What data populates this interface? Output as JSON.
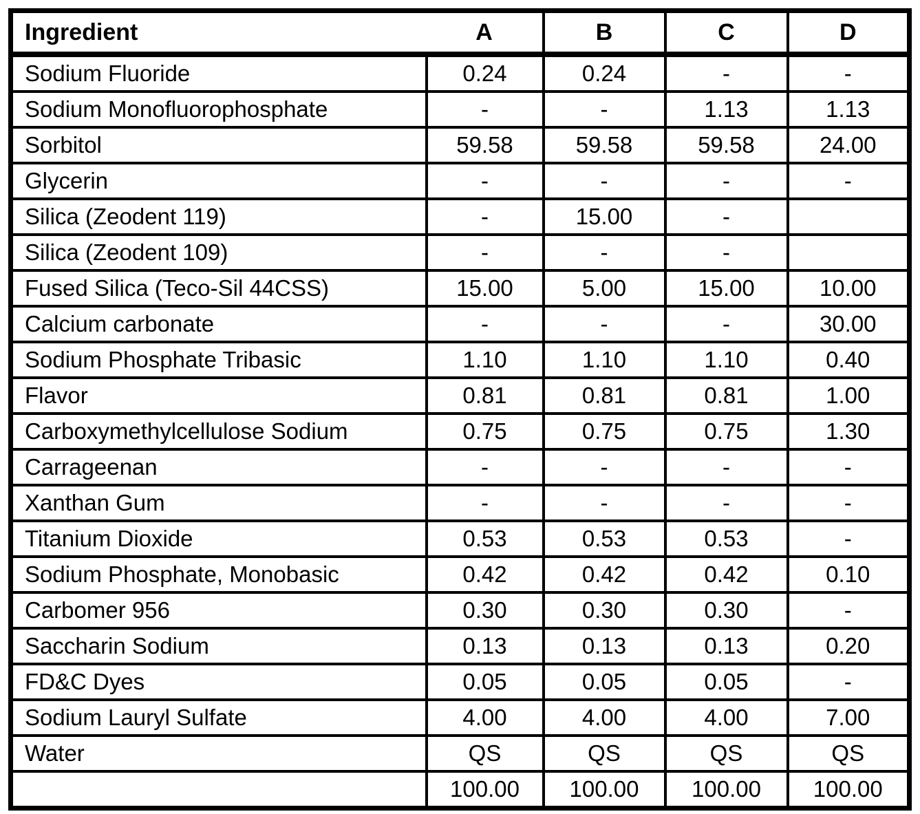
{
  "colors": {
    "background": "#ffffff",
    "border": "#000000",
    "text": "#000000"
  },
  "table": {
    "columns": [
      "Ingredient",
      "A",
      "B",
      "C",
      "D"
    ],
    "rows": [
      {
        "ingredient": "Sodium Fluoride",
        "values": [
          "0.24",
          "0.24",
          "-",
          "-"
        ]
      },
      {
        "ingredient": "Sodium Monofluorophosphate",
        "values": [
          "-",
          "-",
          "1.13",
          "1.13"
        ]
      },
      {
        "ingredient": "Sorbitol",
        "values": [
          "59.58",
          "59.58",
          "59.58",
          "24.00"
        ]
      },
      {
        "ingredient": "Glycerin",
        "values": [
          "-",
          "-",
          "-",
          "-"
        ]
      },
      {
        "ingredient": "Silica (Zeodent 119)",
        "values": [
          "-",
          "15.00",
          "-",
          ""
        ]
      },
      {
        "ingredient": "Silica (Zeodent 109)",
        "values": [
          "-",
          "-",
          "-",
          ""
        ]
      },
      {
        "ingredient": "Fused Silica (Teco-Sil 44CSS)",
        "values": [
          "15.00",
          "5.00",
          "15.00",
          "10.00"
        ]
      },
      {
        "ingredient": "Calcium carbonate",
        "values": [
          "-",
          "-",
          "-",
          "30.00"
        ]
      },
      {
        "ingredient": "Sodium Phosphate Tribasic",
        "values": [
          "1.10",
          "1.10",
          "1.10",
          "0.40"
        ]
      },
      {
        "ingredient": "Flavor",
        "values": [
          "0.81",
          "0.81",
          "0.81",
          "1.00"
        ]
      },
      {
        "ingredient": "Carboxymethylcellulose Sodium",
        "values": [
          "0.75",
          "0.75",
          "0.75",
          "1.30"
        ]
      },
      {
        "ingredient": "Carrageenan",
        "values": [
          "-",
          "-",
          "-",
          "-"
        ]
      },
      {
        "ingredient": "Xanthan Gum",
        "values": [
          "-",
          "-",
          "-",
          "-"
        ]
      },
      {
        "ingredient": "Titanium Dioxide",
        "values": [
          "0.53",
          "0.53",
          "0.53",
          "-"
        ]
      },
      {
        "ingredient": "Sodium Phosphate, Monobasic",
        "values": [
          "0.42",
          "0.42",
          "0.42",
          "0.10"
        ]
      },
      {
        "ingredient": "Carbomer 956",
        "values": [
          "0.30",
          "0.30",
          "0.30",
          "-"
        ]
      },
      {
        "ingredient": "Saccharin Sodium",
        "values": [
          "0.13",
          "0.13",
          "0.13",
          "0.20"
        ]
      },
      {
        "ingredient": "FD&C Dyes",
        "values": [
          "0.05",
          "0.05",
          "0.05",
          "-"
        ]
      },
      {
        "ingredient": "Sodium Lauryl Sulfate",
        "values": [
          "4.00",
          "4.00",
          "4.00",
          "7.00"
        ]
      },
      {
        "ingredient": "Water",
        "values": [
          "QS",
          "QS",
          "QS",
          "QS"
        ]
      },
      {
        "ingredient": "",
        "values": [
          "100.00",
          "100.00",
          "100.00",
          "100.00"
        ]
      }
    ]
  }
}
